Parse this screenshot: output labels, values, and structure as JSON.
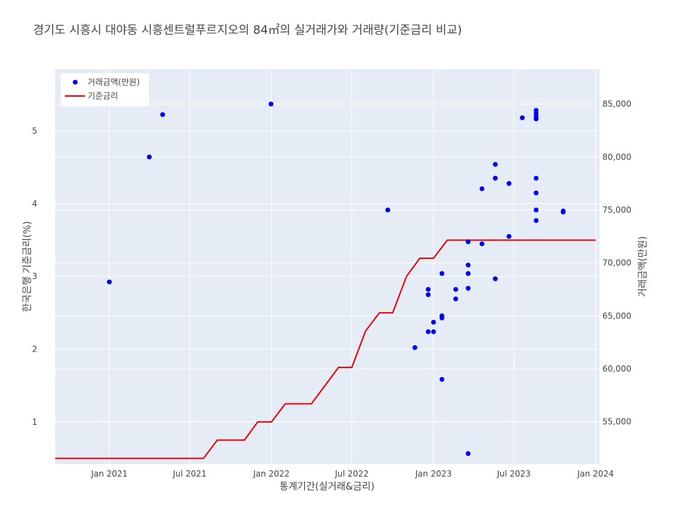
{
  "chart_data": {
    "type": "scatter+line",
    "title": "경기도 시흥시 대야동 시흥센트럴푸르지오의 84㎡의 실거래가와 거래량(기준금리 비교)",
    "xlabel": "통계기간(실거래&금리)",
    "ylabel_left": "한국은행 기준금리(%)",
    "ylabel_right": "거래금액(만원)",
    "x_range": [
      "2020-09-01",
      "2024-01-10"
    ],
    "x_ticks": [
      {
        "date": "2021-01-01",
        "label": "Jan 2021"
      },
      {
        "date": "2021-07-01",
        "label": "Jul 2021"
      },
      {
        "date": "2022-01-01",
        "label": "Jan 2022"
      },
      {
        "date": "2022-07-01",
        "label": "Jul 2022"
      },
      {
        "date": "2023-01-01",
        "label": "Jan 2023"
      },
      {
        "date": "2023-07-01",
        "label": "Jul 2023"
      },
      {
        "date": "2024-01-01",
        "label": "Jan 2024"
      }
    ],
    "y_left_range": [
      0.42,
      5.85
    ],
    "y_left_ticks": [
      1,
      2,
      3,
      4,
      5
    ],
    "y_right_range": [
      51000,
      88300
    ],
    "y_right_ticks": [
      {
        "value": 55000,
        "label": "55,000"
      },
      {
        "value": 60000,
        "label": "60,000"
      },
      {
        "value": 65000,
        "label": "65,000"
      },
      {
        "value": 70000,
        "label": "70,000"
      },
      {
        "value": 75000,
        "label": "75,000"
      },
      {
        "value": 80000,
        "label": "80,000"
      },
      {
        "value": 85000,
        "label": "85,000"
      }
    ],
    "grid": true,
    "legend": "top-left",
    "series": [
      {
        "name": "거래금액(만원)",
        "kind": "scatter",
        "axis": "right",
        "color": "#0000ee",
        "points": [
          {
            "x": "2021-01-01",
            "y": 68200
          },
          {
            "x": "2021-04-01",
            "y": 80000
          },
          {
            "x": "2021-05-01",
            "y": 84000
          },
          {
            "x": "2021-12-31",
            "y": 85000
          },
          {
            "x": "2022-09-20",
            "y": 75000
          },
          {
            "x": "2022-11-20",
            "y": 62000
          },
          {
            "x": "2022-12-20",
            "y": 67000
          },
          {
            "x": "2022-12-20",
            "y": 67500
          },
          {
            "x": "2022-12-20",
            "y": 63500
          },
          {
            "x": "2023-01-01",
            "y": 64400
          },
          {
            "x": "2023-01-01",
            "y": 63500
          },
          {
            "x": "2023-01-20",
            "y": 59000
          },
          {
            "x": "2023-01-20",
            "y": 64800
          },
          {
            "x": "2023-01-20",
            "y": 65000
          },
          {
            "x": "2023-01-20",
            "y": 69000
          },
          {
            "x": "2023-02-20",
            "y": 67500
          },
          {
            "x": "2023-02-20",
            "y": 66600
          },
          {
            "x": "2023-03-20",
            "y": 52000
          },
          {
            "x": "2023-03-20",
            "y": 67600
          },
          {
            "x": "2023-03-20",
            "y": 69000
          },
          {
            "x": "2023-03-20",
            "y": 69800
          },
          {
            "x": "2023-03-20",
            "y": 72000
          },
          {
            "x": "2023-04-20",
            "y": 71800
          },
          {
            "x": "2023-04-20",
            "y": 77000
          },
          {
            "x": "2023-05-20",
            "y": 68500
          },
          {
            "x": "2023-05-20",
            "y": 78000
          },
          {
            "x": "2023-05-20",
            "y": 79300
          },
          {
            "x": "2023-06-20",
            "y": 72500
          },
          {
            "x": "2023-06-20",
            "y": 77500
          },
          {
            "x": "2023-07-20",
            "y": 83700
          },
          {
            "x": "2023-08-20",
            "y": 74000
          },
          {
            "x": "2023-08-20",
            "y": 75000
          },
          {
            "x": "2023-08-20",
            "y": 76600
          },
          {
            "x": "2023-08-20",
            "y": 78000
          },
          {
            "x": "2023-08-20",
            "y": 83600
          },
          {
            "x": "2023-08-20",
            "y": 83800
          },
          {
            "x": "2023-08-20",
            "y": 84100
          },
          {
            "x": "2023-08-20",
            "y": 84400
          },
          {
            "x": "2023-10-20",
            "y": 74800
          },
          {
            "x": "2023-10-20",
            "y": 74900
          }
        ]
      },
      {
        "name": "기준금리",
        "kind": "line",
        "axis": "left",
        "color": "#ee0000",
        "points": [
          {
            "x": "2020-09-01",
            "y": 0.5
          },
          {
            "x": "2021-08-01",
            "y": 0.5
          },
          {
            "x": "2021-09-01",
            "y": 0.75
          },
          {
            "x": "2021-11-01",
            "y": 0.75
          },
          {
            "x": "2021-12-01",
            "y": 1.0
          },
          {
            "x": "2022-01-01",
            "y": 1.0
          },
          {
            "x": "2022-02-01",
            "y": 1.25
          },
          {
            "x": "2022-04-01",
            "y": 1.25
          },
          {
            "x": "2022-06-01",
            "y": 1.75
          },
          {
            "x": "2022-07-01",
            "y": 1.75
          },
          {
            "x": "2022-08-01",
            "y": 2.25
          },
          {
            "x": "2022-09-01",
            "y": 2.5
          },
          {
            "x": "2022-10-01",
            "y": 2.5
          },
          {
            "x": "2022-11-01",
            "y": 3.0
          },
          {
            "x": "2022-12-01",
            "y": 3.25
          },
          {
            "x": "2023-01-01",
            "y": 3.25
          },
          {
            "x": "2023-02-01",
            "y": 3.5
          },
          {
            "x": "2024-01-01",
            "y": 3.5
          }
        ]
      }
    ]
  }
}
